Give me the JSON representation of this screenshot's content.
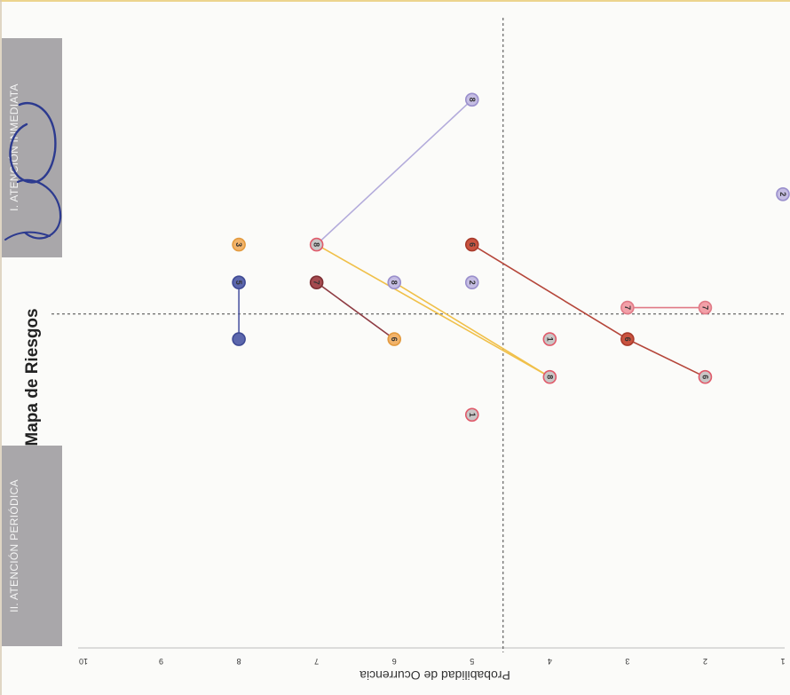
{
  "chart_data": {
    "type": "scatter",
    "title": "Mapa de Riesgos",
    "ylabel": "Probabilidad de Ocurrencia",
    "xlabel": "",
    "zones": [
      {
        "label": "I. ATENCIÓN INMEDIATA"
      },
      {
        "label": "II. ATENCIÓN PERIÓDICA"
      }
    ],
    "y_ticks": [
      "10",
      "9",
      "8",
      "7",
      "6",
      "5",
      "4",
      "3",
      "2",
      "1"
    ],
    "prob_range": [
      1,
      10
    ],
    "pos_range": [
      0,
      10
    ],
    "threshold_prob": 4.6,
    "threshold_pos": 5.3,
    "points": [
      {
        "label": "8",
        "prob": 5,
        "pos": 8.7,
        "fill": "#c5bde3",
        "border": "#9a8fcc"
      },
      {
        "label": "2",
        "prob": 1,
        "pos": 7.2,
        "fill": "#c5bde3",
        "border": "#9a8fcc"
      },
      {
        "label": "3",
        "prob": 8,
        "pos": 6.4,
        "fill": "#f2b36a",
        "border": "#e39a3e"
      },
      {
        "label": "8",
        "prob": 7,
        "pos": 6.4,
        "fill": "#c9c6c6",
        "border": "#e05a6a"
      },
      {
        "label": "6",
        "prob": 5,
        "pos": 6.4,
        "fill": "#c9533f",
        "border": "#a83a2b"
      },
      {
        "label": "5",
        "prob": 8,
        "pos": 5.8,
        "fill": "#5c67ad",
        "border": "#3f4a94"
      },
      {
        "label": "7",
        "prob": 7,
        "pos": 5.8,
        "fill": "#a54a4f",
        "border": "#7d2f34"
      },
      {
        "label": "8",
        "prob": 6,
        "pos": 5.8,
        "fill": "#c5bde3",
        "border": "#9a8fcc"
      },
      {
        "label": "2",
        "prob": 5,
        "pos": 5.8,
        "fill": "#c5bde3",
        "border": "#9a8fcc"
      },
      {
        "label": "7",
        "prob": 3,
        "pos": 5.4,
        "fill": "#f2a0a8",
        "border": "#e07a86"
      },
      {
        "label": "7",
        "prob": 2,
        "pos": 5.4,
        "fill": "#f2a0a8",
        "border": "#e07a86"
      },
      {
        "label": "",
        "prob": 8,
        "pos": 4.9,
        "fill": "#5c67ad",
        "border": "#3f4a94"
      },
      {
        "label": "6",
        "prob": 6,
        "pos": 4.9,
        "fill": "#f2b36a",
        "border": "#e39a3e"
      },
      {
        "label": "1",
        "prob": 4,
        "pos": 4.9,
        "fill": "#c9c6c6",
        "border": "#e05a6a"
      },
      {
        "label": "6",
        "prob": 3,
        "pos": 4.9,
        "fill": "#c9533f",
        "border": "#a83a2b"
      },
      {
        "label": "8",
        "prob": 4,
        "pos": 4.3,
        "fill": "#c9c6c6",
        "border": "#e05a6a"
      },
      {
        "label": "6",
        "prob": 2,
        "pos": 4.3,
        "fill": "#c9c6c6",
        "border": "#e05a6a"
      },
      {
        "label": "1",
        "prob": 5,
        "pos": 3.7,
        "fill": "#c9c6c6",
        "border": "#e05a6a"
      }
    ],
    "connections": [
      {
        "from": 3,
        "to": 0,
        "color": "#b3abdb"
      },
      {
        "from": 5,
        "to": 11,
        "color": "#4e58a3"
      },
      {
        "from": 6,
        "to": 12,
        "color": "#8e3b42"
      },
      {
        "from": 3,
        "to": 15,
        "color": "#f0c04a"
      },
      {
        "from": 7,
        "to": 15,
        "color": "#f0c04a"
      },
      {
        "from": 4,
        "to": 14,
        "color": "#b5463a"
      },
      {
        "from": 14,
        "to": 16,
        "color": "#b5463a"
      },
      {
        "from": 9,
        "to": 10,
        "color": "#e07a86"
      }
    ]
  },
  "annotations": {
    "handwriting": "handwritten-circle-scribble"
  }
}
